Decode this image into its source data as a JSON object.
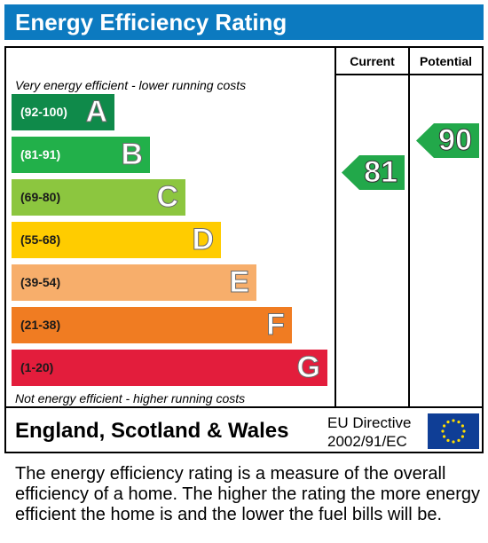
{
  "title": "Energy Efficiency Rating",
  "columns": {
    "current": "Current",
    "potential": "Potential"
  },
  "top_note": "Very energy efficient - lower running costs",
  "bottom_note": "Not energy efficient - higher running costs",
  "bands": [
    {
      "range": "(92-100)",
      "letter": "A",
      "color": "#0f8a4a"
    },
    {
      "range": "(81-91)",
      "letter": "B",
      "color": "#22b04a"
    },
    {
      "range": "(69-80)",
      "letter": "C",
      "color": "#8cc63f"
    },
    {
      "range": "(55-68)",
      "letter": "D",
      "color": "#ffcc00"
    },
    {
      "range": "(39-54)",
      "letter": "E",
      "color": "#f7ae6b"
    },
    {
      "range": "(21-38)",
      "letter": "F",
      "color": "#f07c22"
    },
    {
      "range": "(1-20)",
      "letter": "G",
      "color": "#e31d3c"
    }
  ],
  "current_rating": {
    "value": "81",
    "band": "B",
    "color": "#22a84a"
  },
  "potential_rating": {
    "value": "90",
    "band": "B",
    "color": "#22a84a"
  },
  "footer": {
    "country": "England, Scotland & Wales",
    "directive_line1": "EU Directive",
    "directive_line2": "2002/91/EC"
  },
  "description": "The energy efficiency rating is a measure of the overall efficiency of a home. The higher the rating the more energy efficient the home is and the lower the fuel bills will be."
}
